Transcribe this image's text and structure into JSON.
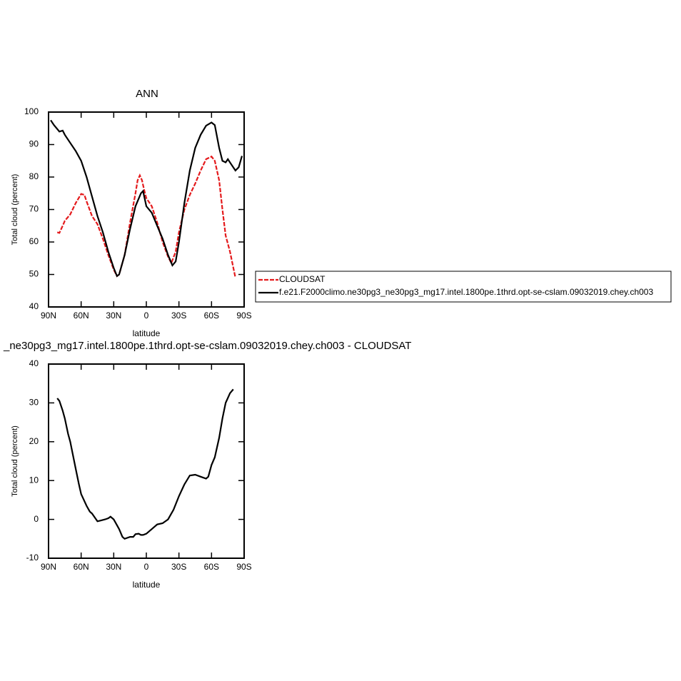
{
  "chart_data": [
    {
      "type": "line",
      "title": "ANN",
      "x_label": "latitude",
      "y_label": "Total cloud (percent)",
      "xlim": [
        90,
        -90
      ],
      "ylim": [
        40,
        100
      ],
      "xticks": [
        {
          "value": 90,
          "label": "90N"
        },
        {
          "value": 60,
          "label": "60N"
        },
        {
          "value": 30,
          "label": "30N"
        },
        0,
        {
          "value": -30,
          "label": "30S"
        },
        {
          "value": -60,
          "label": "60S"
        },
        {
          "value": -90,
          "label": "90S"
        }
      ],
      "yticks": [
        40,
        50,
        60,
        70,
        80,
        90,
        100
      ],
      "series": [
        {
          "name": "CLOUDSAT",
          "color": "#e41a1c",
          "line_style": "dashed",
          "x": [
            82,
            80,
            77,
            75,
            70,
            65,
            60,
            57,
            55,
            50,
            45,
            40,
            35,
            30,
            27,
            25,
            20,
            15,
            10,
            8,
            6,
            4,
            2,
            0,
            -5,
            -10,
            -15,
            -20,
            -23,
            -27,
            -30,
            -35,
            -40,
            -45,
            -50,
            -55,
            -60,
            -63,
            -67,
            -70,
            -73,
            -77,
            -82
          ],
          "values": [
            63,
            62.8,
            65,
            66.5,
            68.5,
            72,
            74.8,
            74.5,
            72.5,
            68,
            65.5,
            61,
            56,
            51.5,
            49.5,
            50,
            56,
            66,
            75,
            79,
            80.5,
            79,
            76,
            73.5,
            71,
            66,
            60,
            55.5,
            53.5,
            57,
            63,
            70,
            74.5,
            78,
            82,
            85.5,
            86.3,
            85,
            79,
            70,
            62,
            57,
            49
          ]
        },
        {
          "name": "f.e21.F2000climo.ne30pg3_ne30pg3_mg17.intel.1800pe.1thrd.opt-se-cslam.09032019.chey.ch003",
          "color": "#000000",
          "line_style": "solid",
          "x": [
            88,
            85,
            80,
            77,
            75,
            70,
            65,
            60,
            55,
            50,
            45,
            40,
            35,
            30,
            27,
            25,
            20,
            15,
            10,
            5,
            3,
            0,
            -5,
            -10,
            -15,
            -20,
            -24,
            -27,
            -30,
            -35,
            -40,
            -45,
            -50,
            -55,
            -60,
            -63,
            -67,
            -70,
            -73,
            -75,
            -78,
            -82,
            -85,
            -88
          ],
          "values": [
            97.5,
            96,
            94,
            94.3,
            93,
            90.5,
            88,
            85,
            80,
            74,
            68,
            63,
            57,
            52,
            49.5,
            50,
            56,
            64,
            71,
            75,
            75.7,
            71,
            69,
            65,
            61,
            56,
            52.8,
            54,
            60,
            72,
            82,
            89,
            93,
            95.8,
            96.8,
            96,
            89,
            85,
            84.5,
            85.5,
            84,
            82,
            83,
            86.5
          ]
        }
      ]
    },
    {
      "type": "line",
      "title": "_ne30pg3_mg17.intel.1800pe.1thrd.opt-se-cslam.09032019.chey.ch003 - CLOUDSAT",
      "x_label": "latitude",
      "y_label": "Total cloud (percent)",
      "xlim": [
        90,
        -90
      ],
      "ylim": [
        -10,
        40
      ],
      "xticks": [
        {
          "value": 90,
          "label": "90N"
        },
        {
          "value": 60,
          "label": "60N"
        },
        {
          "value": 30,
          "label": "30N"
        },
        0,
        {
          "value": -30,
          "label": "30S"
        },
        {
          "value": -60,
          "label": "60S"
        },
        {
          "value": -90,
          "label": "90S"
        }
      ],
      "yticks": [
        -10,
        0,
        10,
        20,
        30,
        40
      ],
      "series": [
        {
          "color": "#000000",
          "line_style": "solid",
          "x": [
            82,
            80,
            77,
            75,
            72,
            70,
            65,
            62,
            60,
            55,
            52,
            50,
            45,
            42,
            38,
            35,
            33,
            30,
            27,
            25,
            22,
            20,
            15,
            12,
            10,
            7,
            5,
            3,
            0,
            -5,
            -10,
            -15,
            -20,
            -25,
            -30,
            -35,
            -40,
            -45,
            -50,
            -55,
            -57,
            -60,
            -63,
            -67,
            -70,
            -73,
            -77,
            -80
          ],
          "values": [
            31.2,
            30.5,
            28,
            26,
            22,
            20,
            13,
            9,
            6.5,
            3.5,
            2,
            1.5,
            -0.5,
            -0.3,
            0,
            0.3,
            0.7,
            0,
            -1.5,
            -2.5,
            -4.5,
            -5,
            -4.5,
            -4.5,
            -3.8,
            -3.7,
            -4,
            -4,
            -3.7,
            -2.5,
            -1.3,
            -1,
            0,
            2.5,
            6,
            9,
            11.3,
            11.5,
            11,
            10.5,
            11,
            14,
            16,
            21,
            26,
            30,
            32.5,
            33.5
          ]
        }
      ]
    }
  ]
}
